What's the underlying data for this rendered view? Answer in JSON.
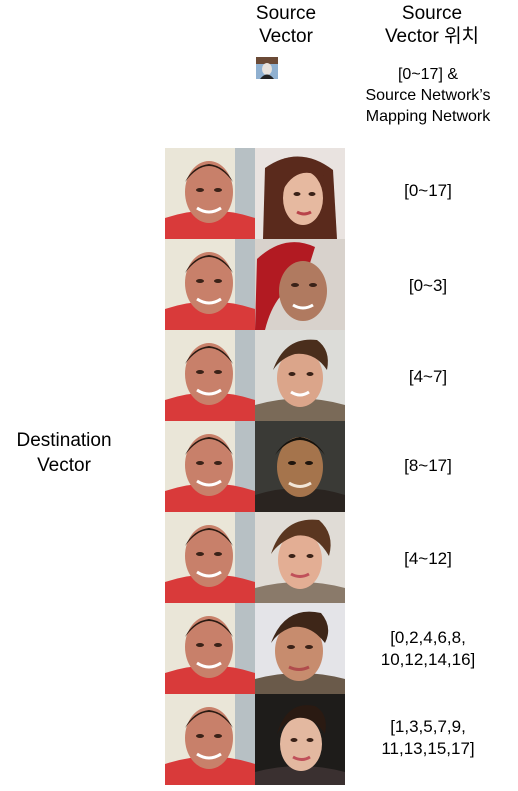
{
  "header": {
    "source_vector": [
      "Source",
      "Vector"
    ],
    "source_position": [
      "Source",
      "Vector 위치"
    ]
  },
  "source_note": [
    "[0~17] &",
    "Source Network’s",
    "Mapping Network"
  ],
  "destination_label": [
    "Destination",
    "Vector"
  ],
  "rows": [
    {
      "label": [
        "[0~17]"
      ]
    },
    {
      "label": [
        "[0~3]"
      ]
    },
    {
      "label": [
        "[4~7]"
      ]
    },
    {
      "label": [
        "[8~17]"
      ]
    },
    {
      "label": [
        "[4~12]"
      ]
    },
    {
      "label": [
        "[0,2,4,6,8,",
        "10,12,14,16]"
      ]
    },
    {
      "label": [
        "[1,3,5,7,9,",
        "11,13,15,17]"
      ]
    }
  ],
  "colors": {
    "dest_shirt": "#d93a3a",
    "dest_skin": "#c8806a"
  }
}
